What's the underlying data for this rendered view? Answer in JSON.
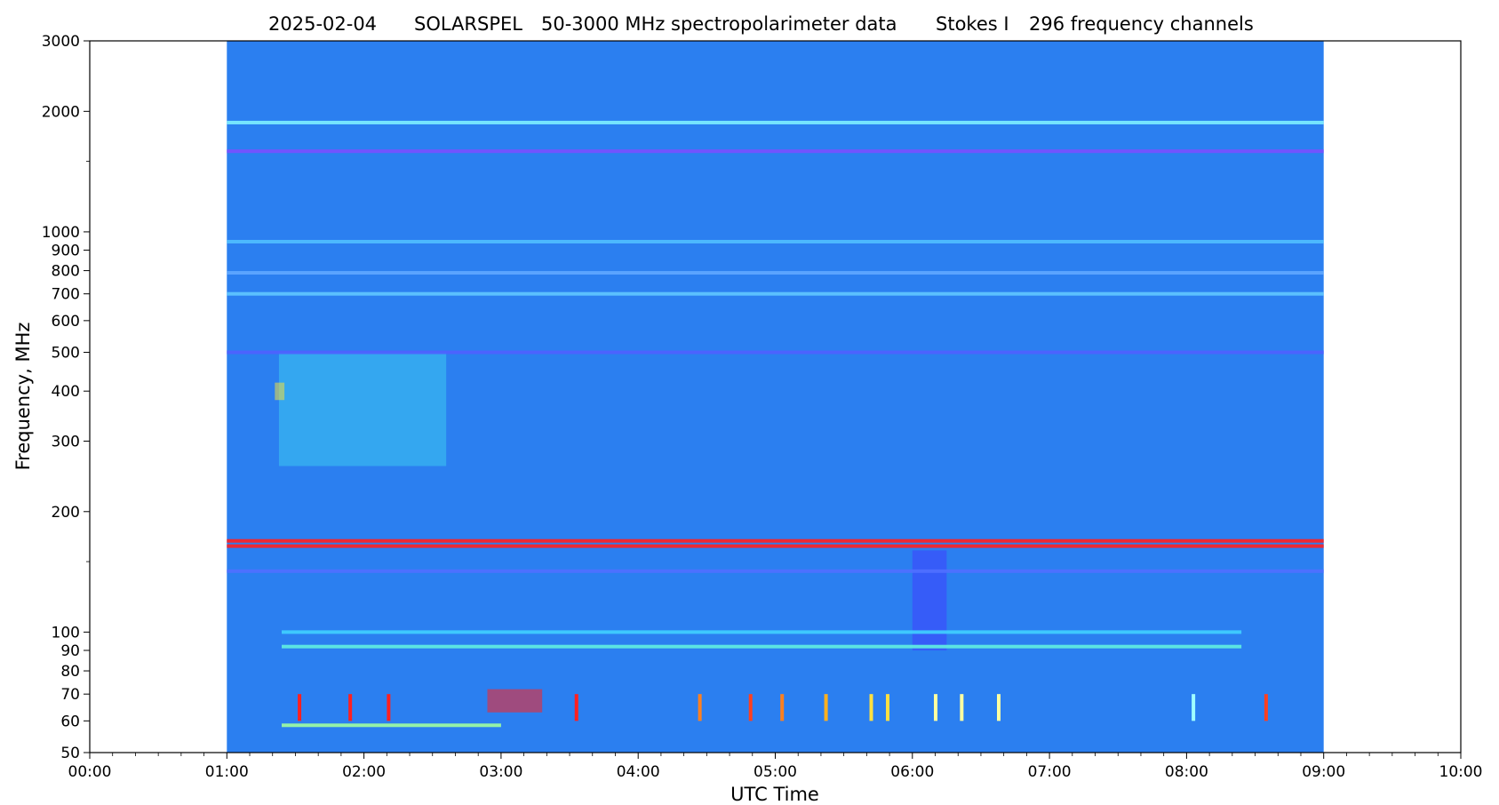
{
  "chart_data": {
    "type": "heatmap",
    "title": {
      "date": "2025-02-04",
      "instrument": "SOLARSPEL",
      "description": "50-3000 MHz spectropolarimeter data",
      "stokes": "Stokes I",
      "channels": "296 frequency channels"
    },
    "xlabel": "UTC Time",
    "ylabel": "Frequency, MHz",
    "x_scale": "time",
    "y_scale": "log",
    "xlim_hours": [
      0,
      10
    ],
    "ylim_mhz": [
      50,
      3000
    ],
    "data_time_range_hours": [
      1,
      9
    ],
    "x_ticks": [
      {
        "value": 0,
        "label": "00:00"
      },
      {
        "value": 1,
        "label": "01:00"
      },
      {
        "value": 2,
        "label": "02:00"
      },
      {
        "value": 3,
        "label": "03:00"
      },
      {
        "value": 4,
        "label": "04:00"
      },
      {
        "value": 5,
        "label": "05:00"
      },
      {
        "value": 6,
        "label": "06:00"
      },
      {
        "value": 7,
        "label": "07:00"
      },
      {
        "value": 8,
        "label": "08:00"
      },
      {
        "value": 9,
        "label": "09:00"
      },
      {
        "value": 10,
        "label": "10:00"
      }
    ],
    "y_ticks": [
      {
        "value": 50,
        "label": "50"
      },
      {
        "value": 60,
        "label": "60"
      },
      {
        "value": 70,
        "label": "70"
      },
      {
        "value": 80,
        "label": "80"
      },
      {
        "value": 90,
        "label": "90"
      },
      {
        "value": 100,
        "label": "100"
      },
      {
        "value": 200,
        "label": "200"
      },
      {
        "value": 300,
        "label": "300"
      },
      {
        "value": 400,
        "label": "400"
      },
      {
        "value": 500,
        "label": "500"
      },
      {
        "value": 600,
        "label": "600"
      },
      {
        "value": 700,
        "label": "700"
      },
      {
        "value": 800,
        "label": "800"
      },
      {
        "value": 900,
        "label": "900"
      },
      {
        "value": 1000,
        "label": "1000"
      },
      {
        "value": 2000,
        "label": "2000"
      },
      {
        "value": 3000,
        "label": "3000"
      }
    ],
    "y_minor_ticks": [
      150,
      1500
    ],
    "colormap": "rainbow",
    "background_color": "#2b7ff0",
    "interference_lines_mhz": [
      {
        "freq": 1875,
        "color": "#7ef0ff",
        "start": 1.0,
        "end": 9.0
      },
      {
        "freq": 1590,
        "color": "#7a50ff",
        "start": 1.0,
        "end": 9.0
      },
      {
        "freq": 945,
        "color": "#50c0ff",
        "start": 1.0,
        "end": 9.0
      },
      {
        "freq": 790,
        "color": "#60a8ff",
        "start": 1.0,
        "end": 9.0
      },
      {
        "freq": 700,
        "color": "#60c8ff",
        "start": 1.0,
        "end": 9.0
      },
      {
        "freq": 500,
        "color": "#5060ff",
        "start": 1.0,
        "end": 9.0
      },
      {
        "freq": 169,
        "color": "#ff2020",
        "start": 1.0,
        "end": 9.0
      },
      {
        "freq": 164,
        "color": "#ff2020",
        "start": 1.0,
        "end": 9.0
      },
      {
        "freq": 142,
        "color": "#5070ff",
        "start": 1.0,
        "end": 9.0
      },
      {
        "freq": 100,
        "color": "#40d0ff",
        "start": 1.4,
        "end": 8.4
      },
      {
        "freq": 92,
        "color": "#60f0e0",
        "start": 1.4,
        "end": 8.4
      },
      {
        "freq": 58.5,
        "color": "#a0ffa0",
        "start": 1.4,
        "end": 3.0
      }
    ],
    "bright_regions": [
      {
        "t0": 1.38,
        "t1": 2.6,
        "f0": 260,
        "f1": 500,
        "color": "#3cc8f0"
      },
      {
        "t0": 1.35,
        "t1": 1.42,
        "f0": 380,
        "f1": 420,
        "color": "#f0e040"
      },
      {
        "t0": 2.9,
        "t1": 3.3,
        "f0": 63,
        "f1": 72,
        "color": "#ff2020"
      },
      {
        "t0": 6.0,
        "t1": 6.25,
        "f0": 90,
        "f1": 160,
        "color": "#4040ff"
      }
    ],
    "bursts": [
      {
        "time": 1.53,
        "f0": 60,
        "f1": 70,
        "color": "#ff2020"
      },
      {
        "time": 1.9,
        "f0": 60,
        "f1": 70,
        "color": "#ff2020"
      },
      {
        "time": 2.18,
        "f0": 60,
        "f1": 70,
        "color": "#ff2020"
      },
      {
        "time": 3.55,
        "f0": 60,
        "f1": 70,
        "color": "#ff2020"
      },
      {
        "time": 4.45,
        "f0": 60,
        "f1": 70,
        "color": "#ff8020"
      },
      {
        "time": 4.82,
        "f0": 60,
        "f1": 70,
        "color": "#ff4020"
      },
      {
        "time": 5.05,
        "f0": 60,
        "f1": 70,
        "color": "#ff8020"
      },
      {
        "time": 5.37,
        "f0": 60,
        "f1": 70,
        "color": "#ffb020"
      },
      {
        "time": 5.7,
        "f0": 60,
        "f1": 70,
        "color": "#ffe040"
      },
      {
        "time": 5.82,
        "f0": 60,
        "f1": 70,
        "color": "#ffe040"
      },
      {
        "time": 6.17,
        "f0": 60,
        "f1": 70,
        "color": "#ffffa0"
      },
      {
        "time": 6.36,
        "f0": 60,
        "f1": 70,
        "color": "#ffffa0"
      },
      {
        "time": 6.63,
        "f0": 60,
        "f1": 70,
        "color": "#ffffa0"
      },
      {
        "time": 8.05,
        "f0": 60,
        "f1": 70,
        "color": "#a0ffff"
      },
      {
        "time": 8.58,
        "f0": 60,
        "f1": 70,
        "color": "#ff4020"
      }
    ]
  }
}
